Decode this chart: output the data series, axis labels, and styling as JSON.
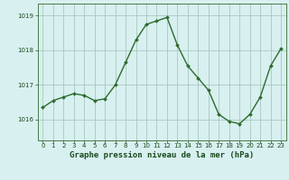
{
  "x": [
    0,
    1,
    2,
    3,
    4,
    5,
    6,
    7,
    8,
    9,
    10,
    11,
    12,
    13,
    14,
    15,
    16,
    17,
    18,
    19,
    20,
    21,
    22,
    23
  ],
  "y": [
    1016.35,
    1016.55,
    1016.65,
    1016.75,
    1016.7,
    1016.55,
    1016.6,
    1017.0,
    1017.65,
    1018.3,
    1018.75,
    1018.85,
    1018.95,
    1018.15,
    1017.55,
    1017.2,
    1016.85,
    1016.15,
    1015.95,
    1015.88,
    1016.15,
    1016.65,
    1017.55,
    1018.05
  ],
  "line_color": "#2d6b2d",
  "marker": "D",
  "marker_size": 2.0,
  "line_width": 1.0,
  "bg_color": "#d8f0f0",
  "grid_color": "#a8c8c0",
  "title": "Graphe pression niveau de la mer (hPa)",
  "title_color": "#1a4a1a",
  "ylabel_ticks": [
    1016,
    1017,
    1018,
    1019
  ],
  "ylim": [
    1015.4,
    1019.35
  ],
  "xlim": [
    -0.5,
    23.5
  ],
  "xlabel_ticks": [
    0,
    1,
    2,
    3,
    4,
    5,
    6,
    7,
    8,
    9,
    10,
    11,
    12,
    13,
    14,
    15,
    16,
    17,
    18,
    19,
    20,
    21,
    22,
    23
  ],
  "tick_color": "#1a4a1a",
  "tick_fontsize": 5.0,
  "title_fontsize": 6.5,
  "axis_color": "#4a7a4a"
}
